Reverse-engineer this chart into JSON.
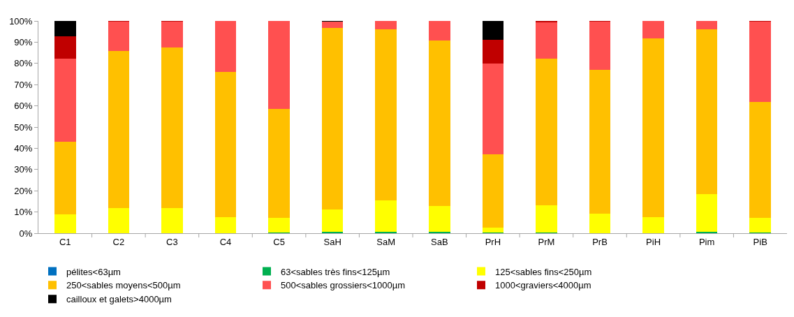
{
  "chart_data": {
    "type": "bar",
    "stacked": true,
    "categories": [
      "C1",
      "C2",
      "C3",
      "C4",
      "C5",
      "SaH",
      "SaM",
      "SaB",
      "PrH",
      "PrM",
      "PrB",
      "PiH",
      "Pim",
      "PiB"
    ],
    "series": [
      {
        "name": "pélites<63µm",
        "color": "#0070c0",
        "values": [
          0,
          0,
          0,
          0,
          0,
          0,
          0,
          0,
          0,
          0,
          0,
          0,
          0,
          0
        ]
      },
      {
        "name": "63<sables très fins<125µm",
        "color": "#00b050",
        "values": [
          0,
          0,
          0,
          0,
          0.3,
          0.6,
          0.8,
          0.6,
          0.3,
          0.3,
          0,
          0,
          0.8,
          0.3
        ]
      },
      {
        "name": "125<sables fins<250µm",
        "color": "#ffff00",
        "values": [
          9.0,
          11.8,
          11.8,
          7.6,
          6.8,
          10.7,
          14.5,
          12.2,
          2.4,
          12.8,
          9.2,
          7.6,
          17.7,
          6.8
        ]
      },
      {
        "name": "250<sables moyens<500µm",
        "color": "#ffc000",
        "values": [
          34.0,
          73.9,
          75.7,
          68.5,
          51.4,
          85.5,
          80.7,
          78.1,
          34.5,
          69.0,
          67.8,
          84.1,
          77.7,
          54.9
        ]
      },
      {
        "name": "500<sables grossiers<1000µm",
        "color": "#ff5050",
        "values": [
          39.1,
          14.1,
          12.2,
          23.9,
          41.5,
          3.0,
          4.0,
          9.1,
          42.7,
          17.4,
          22.8,
          8.3,
          3.8,
          37.7
        ]
      },
      {
        "name": "1000<graviers<4000µm",
        "color": "#c00000",
        "values": [
          10.7,
          0.2,
          0.3,
          0,
          0,
          0,
          0,
          0,
          11.3,
          0.5,
          0.2,
          0,
          0,
          0.3
        ]
      },
      {
        "name": "cailloux et galets>4000µm",
        "color": "#000000",
        "values": [
          7.2,
          0,
          0,
          0,
          0,
          0.2,
          0,
          0,
          8.8,
          0,
          0,
          0,
          0,
          0
        ]
      }
    ],
    "ylim": [
      0,
      100
    ],
    "yticks": [
      {
        "value": 0,
        "label": "0%"
      },
      {
        "value": 10,
        "label": "10%"
      },
      {
        "value": 20,
        "label": "20%"
      },
      {
        "value": 30,
        "label": "30%"
      },
      {
        "value": 40,
        "label": "40%"
      },
      {
        "value": 50,
        "label": "50%"
      },
      {
        "value": 60,
        "label": "60%"
      },
      {
        "value": 70,
        "label": "70%"
      },
      {
        "value": 80,
        "label": "80%"
      },
      {
        "value": 90,
        "label": "90%"
      },
      {
        "value": 100,
        "label": "100%"
      }
    ],
    "grid": false,
    "legend": "bottom"
  }
}
